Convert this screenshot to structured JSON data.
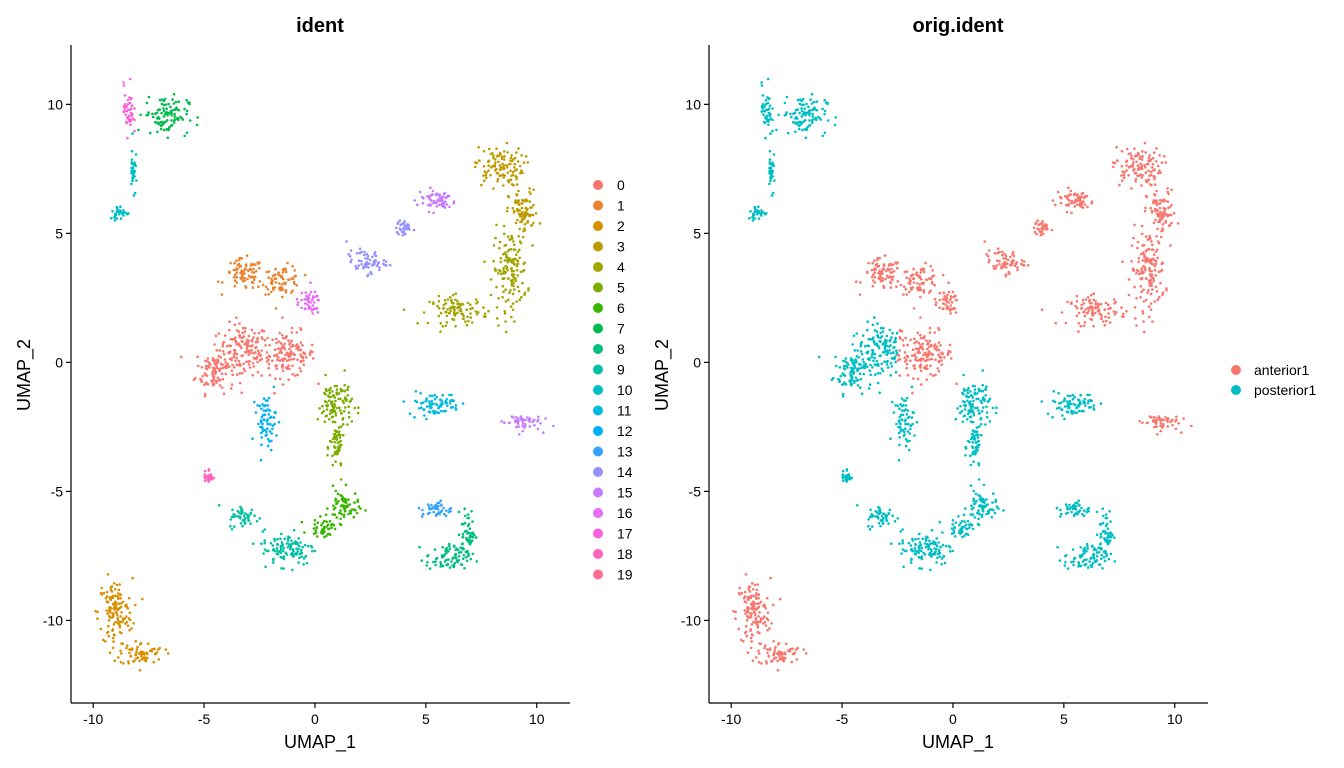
{
  "chart_data": [
    {
      "type": "scatter",
      "title": "ident",
      "xlabel": "UMAP_1",
      "ylabel": "UMAP_2",
      "xlim": [
        -11,
        11.5
      ],
      "ylim": [
        -13.2,
        12.3
      ],
      "xticks": [
        -10,
        -5,
        0,
        5,
        10
      ],
      "yticks": [
        -10,
        -5,
        0,
        5,
        10
      ],
      "xtick_labels": [
        "-10",
        "-5",
        "0",
        "5",
        "10"
      ],
      "ytick_labels": [
        "-10",
        "-5",
        "0",
        "5",
        "10"
      ],
      "grid": false,
      "legend_position": "right",
      "series": [
        {
          "name": "0",
          "color": "#F8766D",
          "clusters": [
            [
              -3.2,
              0.5,
              1.0,
              0.9
            ],
            [
              -4.5,
              -0.3,
              0.8,
              0.8
            ],
            [
              -1.2,
              0.3,
              1.1,
              0.8
            ]
          ]
        },
        {
          "name": "1",
          "color": "#EA8331",
          "clusters": [
            [
              -3.2,
              3.4,
              0.8,
              0.55
            ],
            [
              -1.5,
              3.2,
              0.8,
              0.5
            ]
          ]
        },
        {
          "name": "2",
          "color": "#D89000",
          "clusters": [
            [
              -9.0,
              -9.7,
              0.7,
              1.2
            ],
            [
              -7.8,
              -11.3,
              0.9,
              0.4
            ]
          ]
        },
        {
          "name": "3",
          "color": "#C09B00",
          "clusters": [
            [
              8.3,
              7.6,
              1.0,
              0.7
            ],
            [
              9.4,
              5.8,
              0.6,
              0.8
            ]
          ]
        },
        {
          "name": "4",
          "color": "#A3A500",
          "clusters": [
            [
              8.8,
              3.6,
              0.7,
              1.4
            ],
            [
              6.5,
              2.0,
              1.2,
              0.5
            ]
          ]
        },
        {
          "name": "5",
          "color": "#7CAE00",
          "clusters": [
            [
              0.9,
              -1.6,
              0.7,
              0.9
            ],
            [
              1.0,
              -3.3,
              0.3,
              0.9
            ]
          ]
        },
        {
          "name": "6",
          "color": "#39B600",
          "clusters": [
            [
              1.3,
              -5.6,
              0.6,
              0.6
            ],
            [
              0.4,
              -6.4,
              0.6,
              0.3
            ]
          ]
        },
        {
          "name": "7",
          "color": "#00BB4E",
          "clusters": [
            [
              -6.7,
              9.6,
              0.9,
              0.7
            ]
          ]
        },
        {
          "name": "8",
          "color": "#00BF7D",
          "clusters": [
            [
              6.0,
              -7.6,
              0.9,
              0.5
            ],
            [
              6.9,
              -6.6,
              0.3,
              0.8
            ]
          ]
        },
        {
          "name": "9",
          "color": "#00C1A3",
          "clusters": [
            [
              -1.2,
              -7.2,
              1.1,
              0.6
            ],
            [
              -3.2,
              -6.0,
              0.6,
              0.4
            ]
          ]
        },
        {
          "name": "10",
          "color": "#00BFC4",
          "clusters": [
            [
              -8.8,
              5.8,
              0.4,
              0.25
            ],
            [
              -8.2,
              7.5,
              0.1,
              1.0
            ]
          ]
        },
        {
          "name": "11",
          "color": "#00BAE0",
          "clusters": [
            [
              5.4,
              -1.6,
              1.1,
              0.4
            ]
          ]
        },
        {
          "name": "12",
          "color": "#00B0F6",
          "clusters": [
            [
              -2.2,
              -2.3,
              0.4,
              0.9
            ]
          ]
        },
        {
          "name": "13",
          "color": "#35A2FF",
          "clusters": [
            [
              5.5,
              -5.7,
              0.6,
              0.3
            ]
          ]
        },
        {
          "name": "14",
          "color": "#9590FF",
          "clusters": [
            [
              2.3,
              3.9,
              0.8,
              0.4
            ],
            [
              4.0,
              5.2,
              0.3,
              0.3
            ]
          ]
        },
        {
          "name": "15",
          "color": "#C77CFF",
          "clusters": [
            [
              9.3,
              -2.3,
              0.8,
              0.3
            ],
            [
              5.5,
              6.3,
              0.8,
              0.4
            ]
          ]
        },
        {
          "name": "16",
          "color": "#E76BF3",
          "clusters": [
            [
              -0.3,
              2.3,
              0.5,
              0.4
            ]
          ]
        },
        {
          "name": "17",
          "color": "#FA62DB",
          "clusters": [
            [
              -8.4,
              9.8,
              0.2,
              0.9
            ]
          ]
        },
        {
          "name": "18",
          "color": "#FF62BC",
          "clusters": [
            [
              -4.8,
              -4.4,
              0.2,
              0.3
            ]
          ]
        },
        {
          "name": "19",
          "color": "#FF6C91",
          "clusters": []
        }
      ]
    },
    {
      "type": "scatter",
      "title": "orig.ident",
      "xlabel": "UMAP_1",
      "ylabel": "UMAP_2",
      "xlim": [
        -11,
        11.5
      ],
      "ylim": [
        -13.2,
        12.3
      ],
      "xticks": [
        -10,
        -5,
        0,
        5,
        10
      ],
      "yticks": [
        -10,
        -5,
        0,
        5,
        10
      ],
      "xtick_labels": [
        "-10",
        "-5",
        "0",
        "5",
        "10"
      ],
      "ytick_labels": [
        "-10",
        "-5",
        "0",
        "5",
        "10"
      ],
      "grid": false,
      "legend_position": "right",
      "series": [
        {
          "name": "anterior1",
          "color": "#F8766D"
        },
        {
          "name": "posterior1",
          "color": "#00BFC4"
        }
      ]
    }
  ]
}
